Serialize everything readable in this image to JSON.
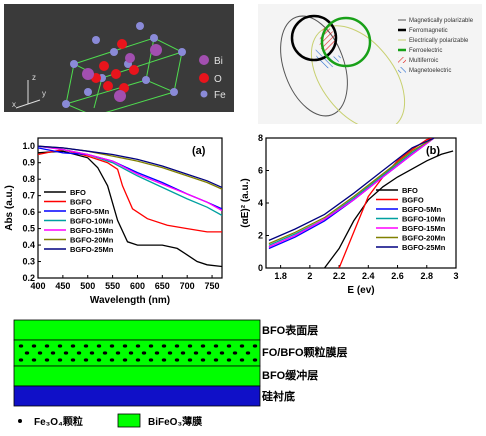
{
  "crystal": {
    "legend": [
      {
        "label": "Bi",
        "color": "#a24fb0"
      },
      {
        "label": "O",
        "color": "#e8141c"
      },
      {
        "label": "Fe",
        "color": "#8a8ad8"
      }
    ],
    "axes": [
      "z",
      "x",
      "y"
    ]
  },
  "venn": {
    "legend": [
      {
        "label": "Magnetically polarizable",
        "style": "thin-black"
      },
      {
        "label": "Ferromagnetic",
        "style": "thick-black"
      },
      {
        "label": "Electrically polarizable",
        "style": "thin-yellow"
      },
      {
        "label": "Ferroelectric",
        "style": "thick-green"
      },
      {
        "label": "Multiferroic",
        "style": "red-hatch"
      },
      {
        "label": "Magnetoelectric",
        "style": "blue-hatch"
      }
    ]
  },
  "chart_data": [
    {
      "type": "line",
      "panel_label": "(a)",
      "xlabel": "Wavelength (nm)",
      "ylabel": "Abs (a.u.)",
      "xlim": [
        400,
        770
      ],
      "ylim": [
        0.2,
        1.05
      ],
      "xticks": [
        400,
        450,
        500,
        550,
        600,
        650,
        700,
        750
      ],
      "yticks": [
        0.2,
        0.3,
        0.4,
        0.5,
        0.6,
        0.7,
        0.8,
        0.9,
        1.0
      ],
      "legend_position": "center-left",
      "series": [
        {
          "name": "BFO",
          "color": "#000000",
          "x": [
            400,
            450,
            500,
            520,
            540,
            560,
            580,
            600,
            620,
            650,
            680,
            700,
            720,
            740,
            770
          ],
          "y": [
            0.96,
            0.97,
            0.93,
            0.87,
            0.76,
            0.55,
            0.42,
            0.4,
            0.4,
            0.4,
            0.38,
            0.34,
            0.3,
            0.28,
            0.27
          ]
        },
        {
          "name": "BGFO",
          "color": "#ff0000",
          "x": [
            400,
            450,
            500,
            540,
            560,
            570,
            590,
            620,
            660,
            700,
            740,
            770
          ],
          "y": [
            0.95,
            0.98,
            0.94,
            0.9,
            0.86,
            0.76,
            0.62,
            0.56,
            0.52,
            0.5,
            0.48,
            0.48
          ]
        },
        {
          "name": "BGFO-5Mn",
          "color": "#0000ff",
          "x": [
            400,
            450,
            500,
            550,
            600,
            650,
            700,
            740,
            770
          ],
          "y": [
            0.99,
            0.96,
            0.95,
            0.91,
            0.84,
            0.78,
            0.71,
            0.66,
            0.62
          ]
        },
        {
          "name": "BGFO-10Mn",
          "color": "#00a0a0",
          "x": [
            400,
            450,
            500,
            550,
            600,
            650,
            700,
            740,
            770
          ],
          "y": [
            1.0,
            0.98,
            0.95,
            0.9,
            0.82,
            0.75,
            0.68,
            0.63,
            0.58
          ]
        },
        {
          "name": "BGFO-15Mn",
          "color": "#ff00ff",
          "x": [
            400,
            450,
            500,
            550,
            600,
            650,
            700,
            740,
            770
          ],
          "y": [
            1.0,
            0.98,
            0.95,
            0.91,
            0.83,
            0.77,
            0.71,
            0.66,
            0.61
          ]
        },
        {
          "name": "BGFO-20Mn",
          "color": "#808000",
          "x": [
            400,
            450,
            500,
            550,
            600,
            650,
            700,
            740,
            770
          ],
          "y": [
            1.0,
            0.99,
            0.97,
            0.94,
            0.91,
            0.87,
            0.82,
            0.78,
            0.74
          ]
        },
        {
          "name": "BGFO-25Mn",
          "color": "#000080",
          "x": [
            400,
            450,
            500,
            550,
            600,
            650,
            700,
            740,
            770
          ],
          "y": [
            1.0,
            0.99,
            0.97,
            0.95,
            0.92,
            0.88,
            0.83,
            0.79,
            0.75
          ]
        }
      ]
    },
    {
      "type": "line",
      "panel_label": "(b)",
      "xlabel": "E (ev)",
      "ylabel": "(αE)² (a.u.)",
      "xlim": [
        1.7,
        3.0
      ],
      "ylim": [
        0,
        8
      ],
      "xticks": [
        1.8,
        2.0,
        2.2,
        2.4,
        2.6,
        2.8,
        3.0
      ],
      "yticks": [
        0,
        2,
        4,
        6,
        8
      ],
      "legend_position": "bottom-right",
      "series": [
        {
          "name": "BFO",
          "color": "#000000",
          "x": [
            2.1,
            2.2,
            2.3,
            2.4,
            2.5,
            2.6,
            2.7,
            2.8,
            2.9,
            2.98
          ],
          "y": [
            0.0,
            1.2,
            2.9,
            4.2,
            5.0,
            5.6,
            6.1,
            6.6,
            7.0,
            7.2
          ]
        },
        {
          "name": "BGFO",
          "color": "#ff0000",
          "x": [
            2.2,
            2.3,
            2.4,
            2.5,
            2.6,
            2.7,
            2.8,
            2.85
          ],
          "y": [
            0.0,
            2.2,
            4.4,
            5.6,
            6.6,
            7.3,
            7.9,
            8.0
          ]
        },
        {
          "name": "BGFO-5Mn",
          "color": "#0000ff",
          "x": [
            1.72,
            1.9,
            2.1,
            2.3,
            2.5,
            2.7,
            2.85
          ],
          "y": [
            1.2,
            1.9,
            2.9,
            4.2,
            5.6,
            7.0,
            8.0
          ]
        },
        {
          "name": "BGFO-10Mn",
          "color": "#00a0a0",
          "x": [
            1.72,
            1.9,
            2.1,
            2.3,
            2.5,
            2.7,
            2.85
          ],
          "y": [
            1.4,
            2.1,
            3.0,
            4.3,
            5.7,
            7.1,
            8.0
          ]
        },
        {
          "name": "BGFO-15Mn",
          "color": "#ff00ff",
          "x": [
            1.72,
            1.9,
            2.1,
            2.3,
            2.5,
            2.7,
            2.85
          ],
          "y": [
            1.3,
            2.0,
            3.0,
            4.2,
            5.6,
            7.0,
            8.0
          ]
        },
        {
          "name": "BGFO-20Mn",
          "color": "#808000",
          "x": [
            1.72,
            1.9,
            2.1,
            2.3,
            2.5,
            2.7,
            2.85
          ],
          "y": [
            1.5,
            2.2,
            3.1,
            4.4,
            5.8,
            7.2,
            8.0
          ]
        },
        {
          "name": "BGFO-25Mn",
          "color": "#000080",
          "x": [
            1.72,
            1.9,
            2.1,
            2.3,
            2.5,
            2.7,
            2.85
          ],
          "y": [
            1.7,
            2.4,
            3.3,
            4.6,
            6.0,
            7.4,
            8.0
          ]
        }
      ]
    }
  ],
  "layers": {
    "labels": [
      "BFO表面层",
      "FO/BFO颗粒膜层",
      "BFO缓冲层",
      "硅衬底"
    ],
    "legend_particle": "Fe₃O₄颗粒",
    "legend_film": "BiFeO₃薄膜",
    "colors": {
      "film": "#00ff00",
      "substrate": "#1010c8",
      "particle": "#000000"
    }
  }
}
